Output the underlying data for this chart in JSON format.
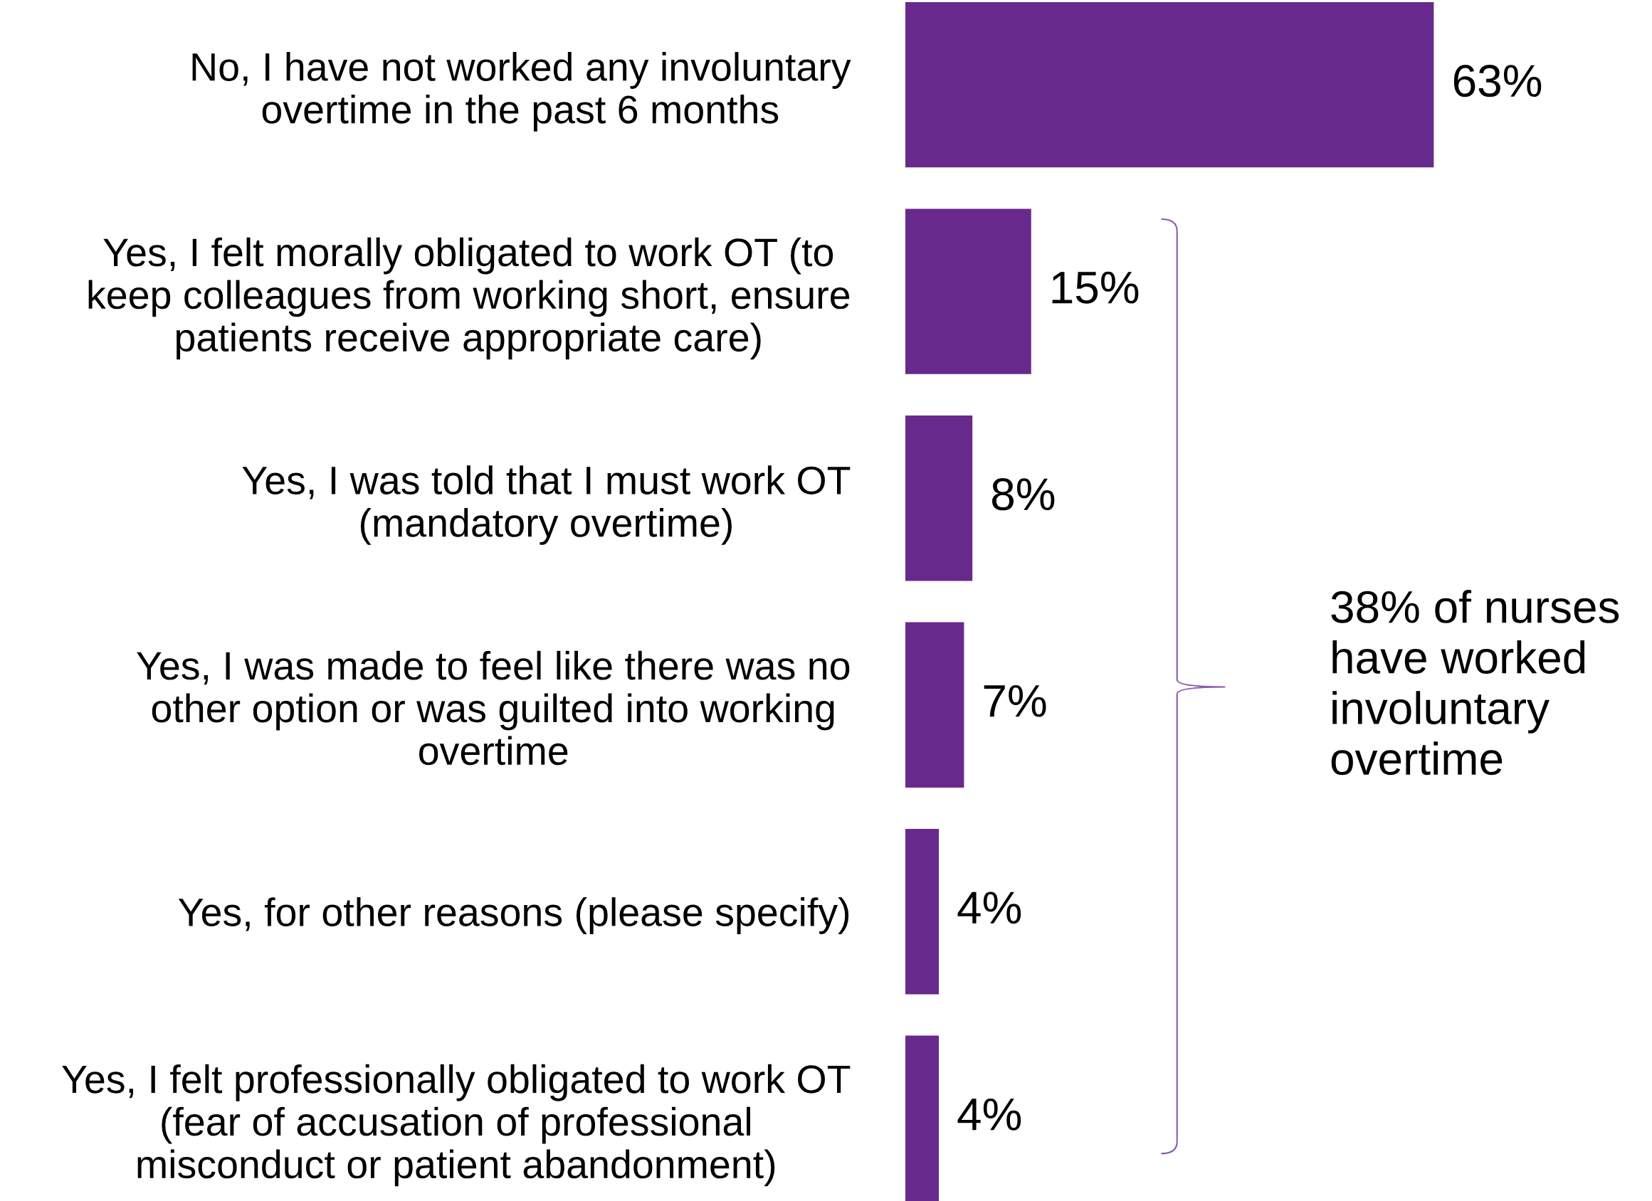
{
  "chart_data": {
    "type": "bar",
    "orientation": "horizontal",
    "categories": [
      "No, I have not worked any involuntary\novertime in the past 6 months",
      "Yes, I felt morally obligated to work OT (to\nkeep colleagues from working short, ensure\npatients receive appropriate care)",
      "Yes, I was told that I must work OT\n(mandatory overtime)",
      "Yes, I was made to feel like there was no\nother option or was guilted into working\novertime",
      "Yes, for other reasons (please specify)",
      "Yes, I felt professionally obligated to work OT\n(fear of accusation of professional\nmisconduct or patient abandonment)"
    ],
    "values": [
      63,
      15,
      8,
      7,
      4,
      4
    ],
    "value_labels": [
      "63%",
      "15%",
      "8%",
      "7%",
      "4%",
      "4%"
    ],
    "color": "#68298d",
    "annotations": [
      "38% of nurses\nhave worked\ninvoluntary\novertime"
    ],
    "grid": false,
    "legend": false
  }
}
